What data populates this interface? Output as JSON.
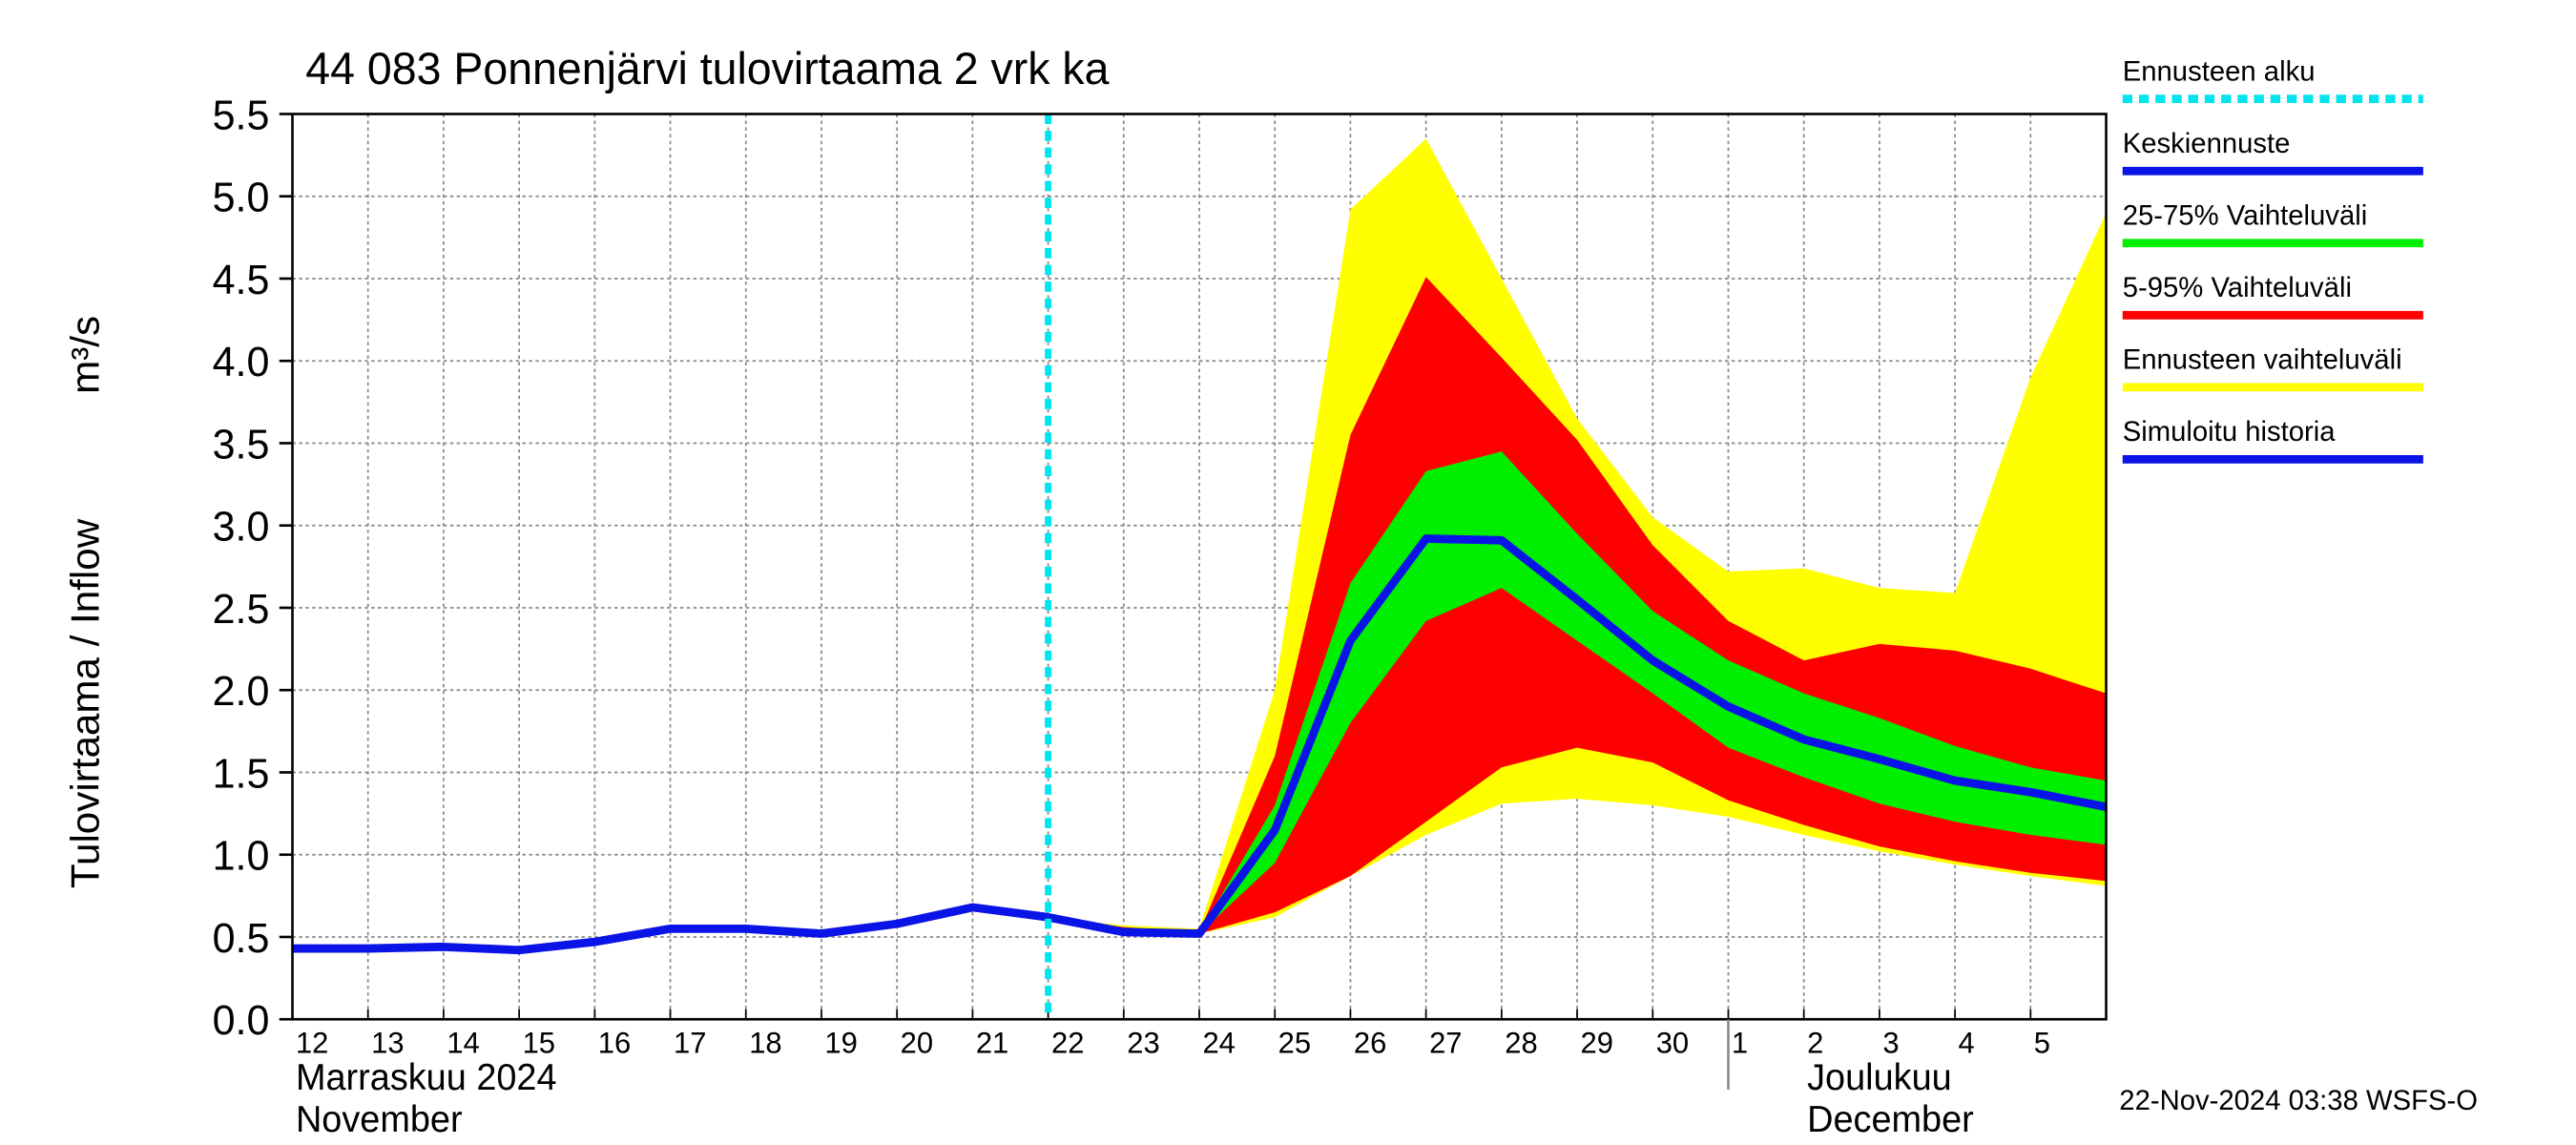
{
  "chart_data": {
    "type": "band-line",
    "title": "44 083 Ponnenjärvi tulovirtaama 2 vrk ka",
    "y_label": "Tulovirtaama / Inflow",
    "y_unit": "m³/s",
    "x": [
      "12",
      "13",
      "14",
      "15",
      "16",
      "17",
      "18",
      "19",
      "20",
      "21",
      "22",
      "23",
      "24",
      "25",
      "26",
      "27",
      "28",
      "29",
      "30",
      "1",
      "2",
      "3",
      "4",
      "5",
      null
    ],
    "month_labels": [
      {
        "at": "12",
        "lines": [
          "Marraskuu 2024",
          "November"
        ]
      },
      {
        "at": "1",
        "lines": [
          "Joulukuu",
          "December"
        ]
      }
    ],
    "forecast_start": {
      "name": "Ennusteen alku",
      "at": "22",
      "color": "#00e5ee"
    },
    "ylim": [
      0,
      5.5
    ],
    "yticks": [
      {
        "value": 0,
        "label": "0.0"
      },
      0.5,
      {
        "value": 1,
        "label": "1.0"
      },
      1.5,
      {
        "value": 2,
        "label": "2.0"
      },
      2.5,
      {
        "value": 3,
        "label": "3.0"
      },
      3.5,
      {
        "value": 4,
        "label": "4.0"
      },
      4.5,
      {
        "value": 5,
        "label": "5.0"
      },
      5.5
    ],
    "grid": true,
    "series": [
      {
        "name": "Keskiennuste",
        "kind": "line",
        "color": "#0a14e6",
        "values": [
          null,
          null,
          null,
          null,
          null,
          null,
          null,
          null,
          null,
          null,
          0.62,
          0.53,
          0.52,
          1.15,
          2.3,
          2.92,
          2.91,
          2.55,
          2.18,
          1.9,
          1.7,
          1.58,
          1.45,
          1.38,
          1.29
        ]
      },
      {
        "name": "25-75% Vaihteluväli",
        "kind": "band",
        "color": "#00ee00",
        "low": [
          null,
          null,
          null,
          null,
          null,
          null,
          null,
          null,
          null,
          null,
          0.62,
          0.55,
          0.52,
          0.95,
          1.8,
          2.42,
          2.62,
          2.3,
          1.98,
          1.65,
          1.47,
          1.31,
          1.2,
          1.12,
          1.06
        ],
        "high": [
          null,
          null,
          null,
          null,
          null,
          null,
          null,
          null,
          null,
          null,
          0.62,
          0.55,
          0.53,
          1.3,
          2.65,
          3.33,
          3.45,
          2.95,
          2.48,
          2.18,
          1.98,
          1.83,
          1.66,
          1.53,
          1.45
        ]
      },
      {
        "name": "5-95% Vaihteluväli",
        "kind": "band",
        "color": "#ff0000",
        "low": [
          null,
          null,
          null,
          null,
          null,
          null,
          null,
          null,
          null,
          null,
          0.62,
          0.55,
          0.52,
          0.65,
          0.87,
          1.2,
          1.53,
          1.65,
          1.56,
          1.33,
          1.18,
          1.05,
          0.96,
          0.89,
          0.84
        ],
        "high": [
          null,
          null,
          null,
          null,
          null,
          null,
          null,
          null,
          null,
          null,
          0.62,
          0.56,
          0.53,
          1.6,
          3.55,
          4.51,
          4.02,
          3.52,
          2.88,
          2.42,
          2.18,
          2.28,
          2.24,
          2.13,
          1.98
        ]
      },
      {
        "name": "Ennusteen vaihteluväli",
        "kind": "band",
        "color": "#ffff00",
        "low": [
          null,
          null,
          null,
          null,
          null,
          null,
          null,
          null,
          null,
          null,
          0.62,
          0.55,
          0.52,
          0.62,
          0.87,
          1.12,
          1.31,
          1.34,
          1.3,
          1.23,
          1.12,
          1.02,
          0.94,
          0.87,
          0.81
        ],
        "high": [
          null,
          null,
          null,
          null,
          null,
          null,
          null,
          null,
          null,
          null,
          0.62,
          0.57,
          0.55,
          2.0,
          4.92,
          5.35,
          4.5,
          3.65,
          3.05,
          2.72,
          2.74,
          2.62,
          2.59,
          3.9,
          4.9
        ]
      },
      {
        "name": "Simuloitu historia",
        "kind": "line",
        "color": "#0a14e6",
        "values": [
          0.43,
          0.43,
          0.44,
          0.42,
          0.47,
          0.55,
          0.55,
          0.52,
          0.58,
          0.68,
          0.62,
          null,
          null,
          null,
          null,
          null,
          null,
          null,
          null,
          null,
          null,
          null,
          null,
          null,
          null
        ]
      }
    ],
    "footer": "22-Nov-2024 03:38 WSFS-O"
  }
}
